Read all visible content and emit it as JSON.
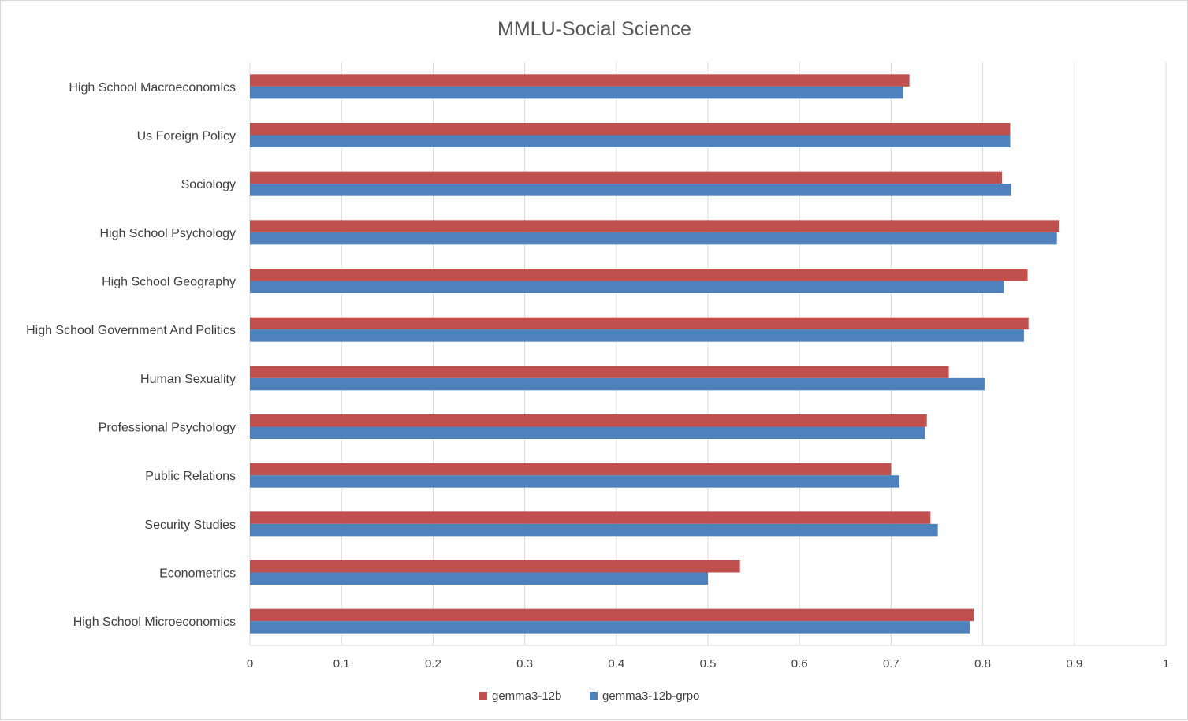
{
  "chart_data": {
    "type": "bar",
    "orientation": "horizontal",
    "title": "MMLU-Social Science",
    "categories": [
      "High School Macroeconomics",
      "Us Foreign Policy",
      "Sociology",
      "High School Psychology",
      "High School Geography",
      "High School Government And Politics",
      "Human Sexuality",
      "Professional Psychology",
      "Public Relations",
      "Security Studies",
      "Econometrics",
      "High School Microeconomics"
    ],
    "series": [
      {
        "name": "gemma3-12b",
        "color": "#c0504d",
        "values": [
          0.72,
          0.83,
          0.821,
          0.883,
          0.849,
          0.85,
          0.763,
          0.739,
          0.7,
          0.743,
          0.535,
          0.79
        ]
      },
      {
        "name": "gemma3-12b-grpo",
        "color": "#4f81bd",
        "values": [
          0.713,
          0.83,
          0.831,
          0.881,
          0.823,
          0.845,
          0.802,
          0.737,
          0.709,
          0.751,
          0.5,
          0.786
        ]
      }
    ],
    "xlim": [
      0,
      1
    ],
    "xticks": [
      "0",
      "0.1",
      "0.2",
      "0.3",
      "0.4",
      "0.5",
      "0.6",
      "0.7",
      "0.8",
      "0.9",
      "1"
    ],
    "grid": true,
    "legend_position": "bottom",
    "gridline_color": "#d9d9d9"
  }
}
